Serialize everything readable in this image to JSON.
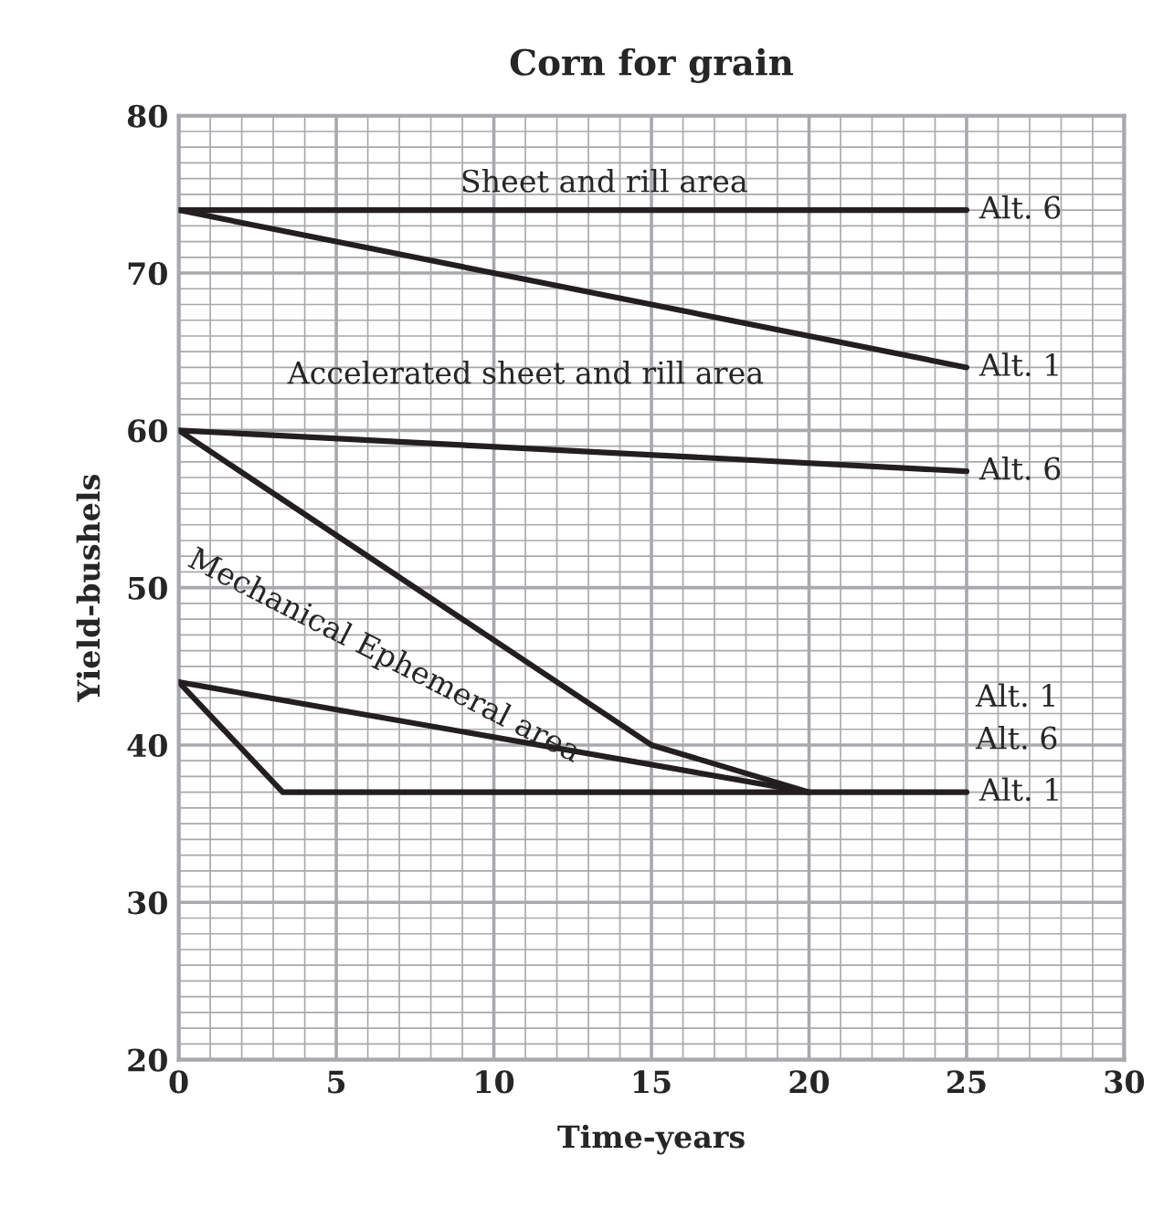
{
  "chart_data": {
    "type": "line",
    "title": "Corn for grain",
    "xlabel": "Time-years",
    "ylabel": "Yield-bushels",
    "xlim": [
      0,
      30
    ],
    "ylim": [
      20,
      80
    ],
    "xticks": [
      0,
      5,
      10,
      15,
      20,
      25,
      30
    ],
    "yticks": [
      20,
      30,
      40,
      50,
      60,
      70,
      80
    ],
    "grid": true,
    "marker": "none",
    "line_style": "solid",
    "legend": false,
    "series": [
      {
        "name": "Alt. 6",
        "color": "#231f20",
        "x": [
          0,
          25
        ],
        "values": [
          74,
          74
        ]
      },
      {
        "name": "Alt. 1",
        "color": "#231f20",
        "x": [
          0,
          25
        ],
        "values": [
          74,
          64
        ]
      },
      {
        "name": "Alt. 6",
        "color": "#231f20",
        "x": [
          0,
          25
        ],
        "values": [
          60,
          57.4
        ]
      },
      {
        "name": "Alt. 1",
        "color": "#231f20",
        "x": [
          0,
          15,
          20
        ],
        "values": [
          60,
          40,
          37
        ]
      },
      {
        "name": "Alt. 6",
        "color": "#231f20",
        "x": [
          0,
          20
        ],
        "values": [
          44,
          37
        ]
      },
      {
        "name": "Alt. 1",
        "color": "#231f20",
        "x": [
          0,
          3.3,
          25
        ],
        "values": [
          44,
          37,
          37
        ]
      }
    ],
    "annotations": [
      "Sheet and rill area",
      "Accelerated sheet and rill area",
      "Mechanical Ephemeral area"
    ]
  }
}
